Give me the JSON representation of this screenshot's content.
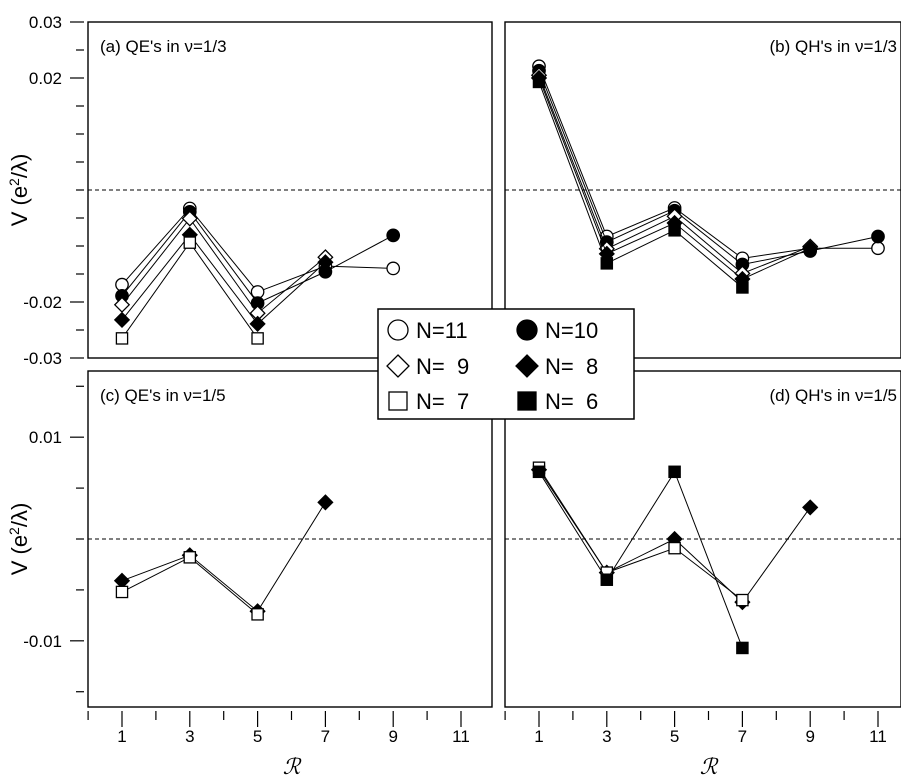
{
  "figure": {
    "xlabel": "ℛ",
    "ylabel_text": "V (e",
    "ylabel_sup": "2",
    "ylabel_tail": "/λ)",
    "x_ticks": [
      1,
      3,
      5,
      7,
      9,
      11
    ],
    "top_y_ticks": [
      {
        "v": 0.03,
        "label": "0.03"
      },
      {
        "v": 0.02,
        "label": "0.02"
      },
      {
        "v": -0.02,
        "label": "-0.02"
      },
      {
        "v": -0.03,
        "label": "-0.03"
      }
    ],
    "top_y_minor": [
      0.025,
      0.015,
      0.01,
      0.005,
      0.0,
      -0.005,
      -0.01,
      -0.015,
      -0.025
    ],
    "bottom_y_ticks": [
      {
        "v": 0.01,
        "label": "0.01"
      },
      {
        "v": -0.01,
        "label": "-0.01"
      }
    ],
    "bottom_y_minor": [
      0.015,
      0.005,
      0.0,
      -0.005,
      -0.015
    ]
  },
  "legend": {
    "entries": [
      {
        "label": "N=11",
        "marker": "circle",
        "filled": false
      },
      {
        "label": "N=10",
        "marker": "circle",
        "filled": true
      },
      {
        "label": "N=  9",
        "marker": "diamond",
        "filled": false
      },
      {
        "label": "N=  8",
        "marker": "diamond",
        "filled": true
      },
      {
        "label": "N=  7",
        "marker": "square",
        "filled": false
      },
      {
        "label": "N=  6",
        "marker": "square",
        "filled": true
      }
    ]
  },
  "chart_data": [
    {
      "type": "line",
      "panel": "a",
      "title": "(a) QE's in ν=1/3",
      "xlabel": "ℛ",
      "ylabel": "V (e2/λ)",
      "ylim": [
        -0.03,
        0.03
      ],
      "xlim": [
        0,
        12
      ],
      "reference_line": 0,
      "series": [
        {
          "name": "N=11",
          "x": [
            1,
            3,
            5,
            7,
            9
          ],
          "y": [
            -0.0169,
            -0.0033,
            -0.0182,
            -0.0136,
            -0.014
          ]
        },
        {
          "name": "N=10",
          "x": [
            1,
            3,
            5,
            7,
            9
          ],
          "y": [
            -0.0189,
            -0.0039,
            -0.0202,
            -0.0146,
            -0.0081
          ]
        },
        {
          "name": "N=9",
          "x": [
            1,
            3,
            5,
            7
          ],
          "y": [
            -0.0205,
            -0.0051,
            -0.022,
            -0.012
          ]
        },
        {
          "name": "N=8",
          "x": [
            1,
            3,
            5,
            7
          ],
          "y": [
            -0.0232,
            -0.008,
            -0.0239,
            -0.0129
          ]
        },
        {
          "name": "N=7",
          "x": [
            1,
            3,
            5
          ],
          "y": [
            -0.0265,
            -0.0094,
            -0.0265
          ]
        }
      ]
    },
    {
      "type": "line",
      "panel": "b",
      "title": "(b) QH's in ν=1/3",
      "xlabel": "ℛ",
      "ylabel": "V (e2/λ)",
      "ylim": [
        -0.03,
        0.03
      ],
      "xlim": [
        0,
        12
      ],
      "reference_line": 0,
      "series": [
        {
          "name": "N=11",
          "x": [
            1,
            3,
            5,
            7,
            9,
            11
          ],
          "y": [
            0.0221,
            -0.0083,
            -0.0032,
            -0.0122,
            -0.0104,
            -0.0104
          ]
        },
        {
          "name": "N=10",
          "x": [
            1,
            3,
            5,
            7,
            9,
            11
          ],
          "y": [
            0.0213,
            -0.0093,
            -0.0037,
            -0.0133,
            -0.0109,
            -0.0083
          ]
        },
        {
          "name": "N=9",
          "x": [
            1,
            3,
            5,
            7,
            9
          ],
          "y": [
            0.0205,
            -0.0105,
            -0.0047,
            -0.0149,
            -0.0101
          ]
        },
        {
          "name": "N=8",
          "x": [
            1,
            3,
            5,
            7,
            9
          ],
          "y": [
            0.02,
            -0.0114,
            -0.0059,
            -0.0159,
            -0.0104
          ]
        },
        {
          "name": "N=6",
          "x": [
            1,
            3,
            5,
            7
          ],
          "y": [
            0.0193,
            -0.0131,
            -0.0072,
            -0.0174
          ]
        }
      ]
    },
    {
      "type": "line",
      "panel": "c",
      "title": "(c) QE's in ν=1/5",
      "xlabel": "ℛ",
      "ylabel": "V (e2/λ)",
      "ylim": [
        -0.0165,
        0.0165
      ],
      "xlim": [
        0,
        12
      ],
      "reference_line": 0,
      "series": [
        {
          "name": "N=8",
          "x": [
            1,
            3,
            5,
            7
          ],
          "y": [
            -0.0041,
            -0.0016,
            -0.0071,
            0.0036
          ]
        },
        {
          "name": "N=7",
          "x": [
            1,
            3,
            5
          ],
          "y": [
            -0.0052,
            -0.0018,
            -0.0074
          ]
        }
      ]
    },
    {
      "type": "line",
      "panel": "d",
      "title": "(d) QH's in ν=1/5",
      "xlabel": "ℛ",
      "ylabel": "V (e2/λ)",
      "ylim": [
        -0.0165,
        0.0165
      ],
      "xlim": [
        0,
        12
      ],
      "reference_line": 0,
      "series": [
        {
          "name": "N=8",
          "x": [
            1,
            3,
            5,
            7,
            9
          ],
          "y": [
            0.0068,
            -0.0033,
            0.0,
            -0.0062,
            0.0031
          ]
        },
        {
          "name": "N=7",
          "x": [
            1,
            3,
            5,
            7
          ],
          "y": [
            0.007,
            -0.0033,
            -0.0009,
            -0.006
          ]
        },
        {
          "name": "N=6",
          "x": [
            1,
            3,
            5,
            7
          ],
          "y": [
            0.0066,
            -0.004,
            0.0066,
            -0.0107
          ]
        }
      ]
    }
  ]
}
